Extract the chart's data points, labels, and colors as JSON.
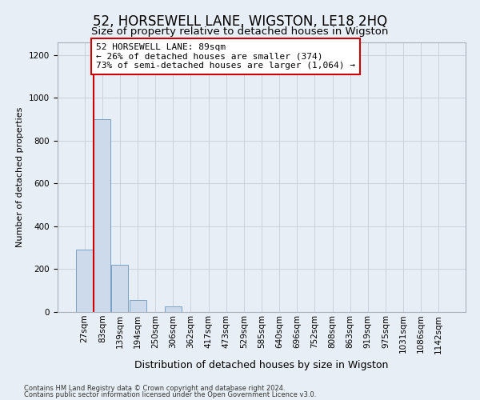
{
  "title": "52, HORSEWELL LANE, WIGSTON, LE18 2HQ",
  "subtitle": "Size of property relative to detached houses in Wigston",
  "xlabel": "Distribution of detached houses by size in Wigston",
  "ylabel": "Number of detached properties",
  "bar_color": "#ccdaeb",
  "bar_edge_color": "#7aa0c4",
  "bar_categories": [
    "27sqm",
    "83sqm",
    "139sqm",
    "194sqm",
    "250sqm",
    "306sqm",
    "362sqm",
    "417sqm",
    "473sqm",
    "529sqm",
    "585sqm",
    "640sqm",
    "696sqm",
    "752sqm",
    "808sqm",
    "863sqm",
    "919sqm",
    "975sqm",
    "1031sqm",
    "1086sqm",
    "1142sqm"
  ],
  "bar_values": [
    290,
    900,
    220,
    55,
    0,
    25,
    0,
    0,
    0,
    0,
    0,
    0,
    0,
    0,
    0,
    0,
    0,
    0,
    0,
    0,
    0
  ],
  "ylim_max": 1260,
  "yticks": [
    0,
    200,
    400,
    600,
    800,
    1000,
    1200
  ],
  "property_bar_idx": 1,
  "property_line_color": "#cc0000",
  "ann_line1": "52 HORSEWELL LANE: 89sqm",
  "ann_line2": "← 26% of detached houses are smaller (374)",
  "ann_line3": "73% of semi-detached houses are larger (1,064) →",
  "ann_box_fc": "#ffffff",
  "ann_box_ec": "#cc0000",
  "footnote1": "Contains HM Land Registry data © Crown copyright and database right 2024.",
  "footnote2": "Contains public sector information licensed under the Open Government Licence v3.0.",
  "bg_color": "#e8eef5",
  "grid_color": "#c5cdd8",
  "title_fontsize": 12,
  "subtitle_fontsize": 9.5,
  "ylabel_fontsize": 8,
  "xlabel_fontsize": 9,
  "tick_fontsize": 7.5,
  "ann_fontsize": 8,
  "footnote_fontsize": 6
}
